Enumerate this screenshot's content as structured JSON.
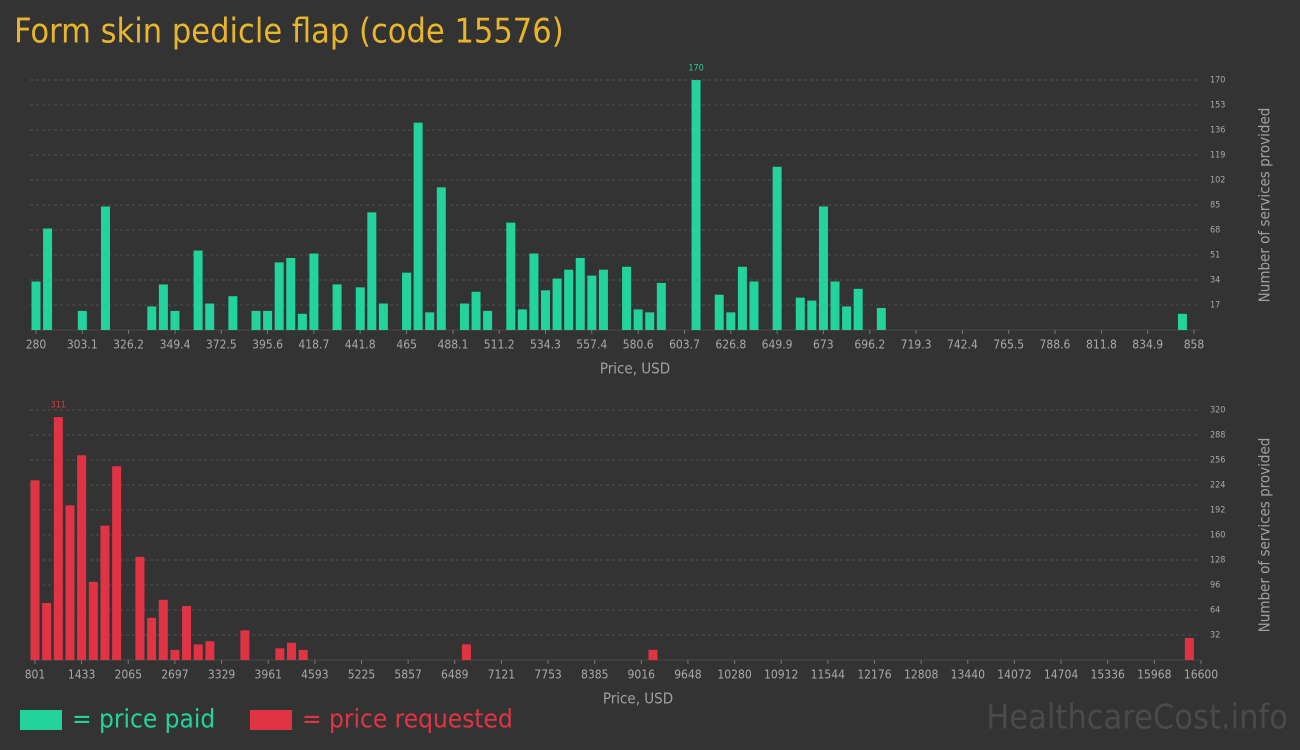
{
  "chart_data": [
    {
      "type": "bar",
      "title": "Form skin pedicle flap (code 15576)",
      "xlabel": "Price, USD",
      "ylabel": "Number of services provided",
      "x": [
        280,
        285.78,
        303.12,
        314.68,
        337.8,
        343.58,
        349.36,
        360.92,
        366.7,
        378.26,
        389.82,
        395.6,
        401.38,
        407.16,
        412.94,
        418.72,
        430.28,
        441.84,
        447.62,
        453.4,
        464.96,
        470.74,
        476.52,
        482.3,
        493.86,
        499.64,
        505.42,
        516.98,
        522.76,
        528.54,
        534.32,
        540.1,
        545.88,
        551.66,
        557.44,
        563.22,
        574.78,
        580.56,
        586.34,
        592.12,
        609.46,
        621.02,
        626.8,
        632.58,
        638.36,
        649.92,
        661.48,
        667.26,
        673.04,
        678.82,
        684.6,
        690.38,
        701.94,
        852.22
      ],
      "series": [
        {
          "name": "= price paid",
          "color": "#22d39b",
          "values": [
            33,
            69,
            13,
            84,
            16,
            31,
            13,
            54,
            18,
            23,
            13,
            13,
            46,
            49,
            11,
            52,
            31,
            29,
            80,
            18,
            39,
            141,
            12,
            97,
            18,
            26,
            13,
            73,
            14,
            52,
            27,
            35,
            41,
            49,
            37,
            41,
            43,
            14,
            12,
            32,
            170,
            24,
            12,
            43,
            33,
            111,
            22,
            20,
            84,
            33,
            16,
            28,
            15,
            11
          ]
        }
      ],
      "xlim": [
        280,
        858
      ],
      "xticks": [
        280,
        303.1,
        326.2,
        349.4,
        372.5,
        395.6,
        418.7,
        441.8,
        465,
        488.1,
        511.2,
        534.3,
        557.4,
        580.6,
        603.7,
        626.8,
        649.9,
        673,
        696.2,
        719.3,
        742.4,
        765.5,
        788.6,
        811.8,
        834.9,
        858
      ],
      "ylim": [
        0,
        170
      ],
      "yticks": [
        17,
        34,
        51,
        68,
        85,
        102,
        119,
        136,
        153,
        170
      ],
      "grid": true
    },
    {
      "type": "bar",
      "xlabel": "Price, USD",
      "ylabel": "Number of services provided",
      "x": [
        801,
        958.99,
        1116.98,
        1274.97,
        1432.96,
        1590.95,
        1748.94,
        1906.93,
        2222.91,
        2380.9,
        2538.89,
        2696.88,
        2854.87,
        3012.86,
        3170.85,
        3644.82,
        4118.79,
        4276.78,
        4434.77,
        6646.63,
        9174.47,
        16442.01
      ],
      "series": [
        {
          "name": "= price requested",
          "color": "#e03444",
          "values": [
            230,
            73,
            311,
            198,
            262,
            100,
            172,
            248,
            132,
            54,
            77,
            13,
            69,
            20,
            24,
            38,
            15,
            22,
            13,
            20,
            13,
            28
          ]
        }
      ],
      "xlim": [
        801,
        16600
      ],
      "xticks": [
        801,
        1433,
        2065,
        2697,
        3329,
        3961,
        4593,
        5225,
        5857,
        6489,
        7121,
        7753,
        8385,
        9016,
        9648,
        10280,
        10912,
        11544,
        12176,
        12808,
        13440,
        14072,
        14704,
        15336,
        15968,
        16600
      ],
      "ylim": [
        0,
        320
      ],
      "yticks": [
        32,
        64,
        96,
        128,
        160,
        192,
        224,
        256,
        288,
        320
      ],
      "grid": true
    }
  ],
  "watermark": "HealthcareCost.info"
}
